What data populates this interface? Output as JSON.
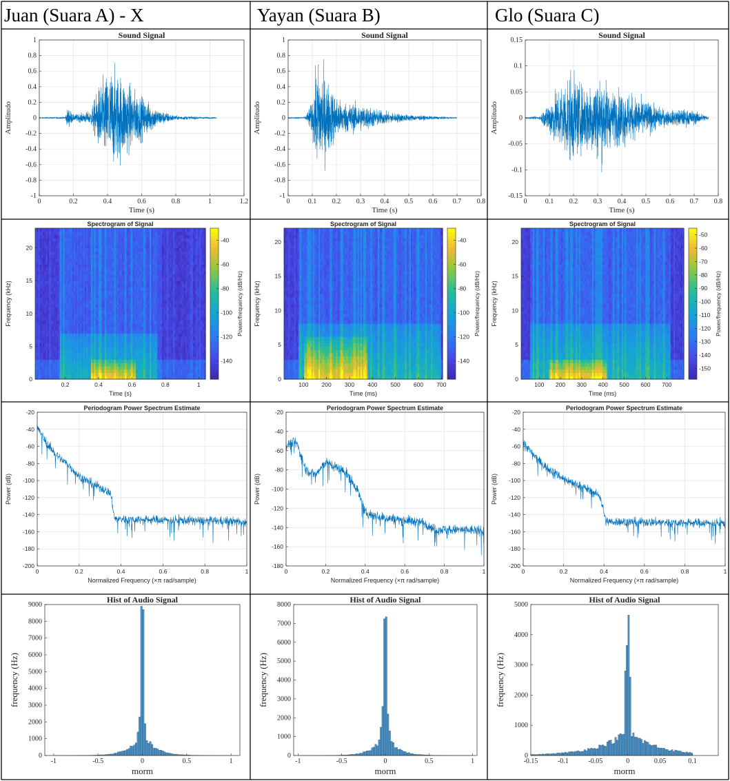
{
  "headers": [
    "Juan (Suara A) - X",
    "Yayan (Suara B)",
    "Glo (Suara C)"
  ],
  "chart_data": [
    {
      "type": "line",
      "panel": "signal",
      "column": 0,
      "title": "Sound Signal",
      "xlabel": "Time (s)",
      "ylabel": "Amplitudo",
      "xlim": [
        0,
        1.2
      ],
      "ylim": [
        -1,
        1
      ],
      "xticks": [
        "0",
        "0.2",
        "0.4",
        "0.6",
        "0.8",
        "1",
        "1.2"
      ],
      "yticks": [
        "1",
        "0.8",
        "0.6",
        "0.4",
        "0.2",
        "0",
        "-0.2",
        "-0.4",
        "-0.6",
        "-0.8",
        "-1"
      ],
      "color": "#0072BD",
      "grid": true,
      "envelope": [
        {
          "t": 0,
          "a": 0.01
        },
        {
          "t": 0.15,
          "a": 0.02
        },
        {
          "t": 0.17,
          "a": 0.2
        },
        {
          "t": 0.2,
          "a": 0.06
        },
        {
          "t": 0.3,
          "a": 0.12
        },
        {
          "t": 0.35,
          "a": 0.6
        },
        {
          "t": 0.42,
          "a": 0.92
        },
        {
          "t": 0.48,
          "a": 0.82
        },
        {
          "t": 0.55,
          "a": 0.55
        },
        {
          "t": 0.62,
          "a": 0.35
        },
        {
          "t": 0.7,
          "a": 0.15
        },
        {
          "t": 0.8,
          "a": 0.04
        },
        {
          "t": 1.04,
          "a": 0.01
        }
      ]
    },
    {
      "type": "line",
      "panel": "signal",
      "column": 1,
      "title": "Sound Signal",
      "xlabel": "Time (s)",
      "ylabel": "Amplitudo",
      "xlim": [
        0,
        0.8
      ],
      "ylim": [
        -1,
        1
      ],
      "xticks": [
        "0",
        "0.1",
        "0.2",
        "0.3",
        "0.4",
        "0.5",
        "0.6",
        "0.7",
        "0.8"
      ],
      "yticks": [
        "1",
        "0.8",
        "0.6",
        "0.4",
        "0.2",
        "0",
        "-0.2",
        "-0.4",
        "-0.6",
        "-0.8",
        "-1"
      ],
      "color": "#0072BD",
      "grid": true,
      "envelope": [
        {
          "t": 0,
          "a": 0.01
        },
        {
          "t": 0.07,
          "a": 0.02
        },
        {
          "t": 0.1,
          "a": 0.3
        },
        {
          "t": 0.12,
          "a": 1.0
        },
        {
          "t": 0.14,
          "a": 0.9
        },
        {
          "t": 0.18,
          "a": 0.55
        },
        {
          "t": 0.22,
          "a": 0.3
        },
        {
          "t": 0.3,
          "a": 0.25
        },
        {
          "t": 0.4,
          "a": 0.12
        },
        {
          "t": 0.5,
          "a": 0.06
        },
        {
          "t": 0.6,
          "a": 0.03
        },
        {
          "t": 0.7,
          "a": 0.01
        }
      ]
    },
    {
      "type": "line",
      "panel": "signal",
      "column": 2,
      "title": "Sound Signal",
      "xlabel": "Time (s)",
      "ylabel": "Amplitudo",
      "xlim": [
        0,
        0.8
      ],
      "ylim": [
        -0.15,
        0.15
      ],
      "xticks": [
        "0",
        "0.1",
        "0.2",
        "0.3",
        "0.4",
        "0.5",
        "0.6",
        "0.7",
        "0.8"
      ],
      "yticks": [
        "0.15",
        "0.1",
        "0.05",
        "0",
        "-0.05",
        "-0.1",
        "-0.15"
      ],
      "color": "#0072BD",
      "grid": true,
      "envelope": [
        {
          "t": 0,
          "a": 0.002
        },
        {
          "t": 0.06,
          "a": 0.005
        },
        {
          "t": 0.1,
          "a": 0.05
        },
        {
          "t": 0.15,
          "a": 0.1
        },
        {
          "t": 0.19,
          "a": 0.13
        },
        {
          "t": 0.23,
          "a": 0.09
        },
        {
          "t": 0.28,
          "a": 0.11
        },
        {
          "t": 0.32,
          "a": 0.12
        },
        {
          "t": 0.36,
          "a": 0.07
        },
        {
          "t": 0.4,
          "a": 0.08
        },
        {
          "t": 0.45,
          "a": 0.06
        },
        {
          "t": 0.5,
          "a": 0.05
        },
        {
          "t": 0.55,
          "a": 0.03
        },
        {
          "t": 0.6,
          "a": 0.02
        },
        {
          "t": 0.65,
          "a": 0.025
        },
        {
          "t": 0.7,
          "a": 0.02
        },
        {
          "t": 0.76,
          "a": 0.005
        }
      ]
    },
    {
      "type": "heatmap",
      "panel": "spectrogram",
      "column": 0,
      "title": "Spectrogram of Signal",
      "xlabel": "Time (s)",
      "ylabel": "Frequency (kHz)",
      "colorbar_label": "Power/frequency (dB/Hz)",
      "xlim": [
        0.02,
        1.04
      ],
      "ylim": [
        0,
        23
      ],
      "xticks": [
        "0.2",
        "0.4",
        "0.6",
        "0.8",
        "1"
      ],
      "yticks": [
        "0",
        "5",
        "10",
        "15",
        "20"
      ],
      "cticks": [
        "-40",
        "-60",
        "-80",
        "-100",
        "-120",
        "-140"
      ],
      "clim": [
        -155,
        -30
      ],
      "speech": [
        0.17,
        0.75
      ],
      "peak": [
        0.35,
        0.62
      ],
      "energy_khz": 7,
      "bright_khz": 3
    },
    {
      "type": "heatmap",
      "panel": "spectrogram",
      "column": 1,
      "title": "Spectrogram of Signal",
      "xlabel": "Time (ms)",
      "ylabel": "Frequency (kHz)",
      "colorbar_label": "Power/frequency (dB/Hz)",
      "xlim": [
        15,
        705
      ],
      "ylim": [
        0,
        22
      ],
      "xticks": [
        "100",
        "200",
        "300",
        "400",
        "500",
        "600",
        "700"
      ],
      "yticks": [
        "0",
        "5",
        "10",
        "15",
        "20"
      ],
      "cticks": [
        "-40",
        "-60",
        "-80",
        "-100",
        "-120",
        "-140"
      ],
      "clim": [
        -155,
        -30
      ],
      "speech": [
        80,
        700
      ],
      "peak": [
        100,
        380
      ],
      "energy_khz": 8,
      "bright_khz": 6
    },
    {
      "type": "heatmap",
      "panel": "spectrogram",
      "column": 2,
      "title": "Spectrogram of Signal",
      "xlabel": "Time (ms)",
      "ylabel": "Frequency (kHz)",
      "colorbar_label": "Power/frequency (dB/Hz)",
      "xlim": [
        15,
        780
      ],
      "ylim": [
        0,
        22
      ],
      "xticks": [
        "100",
        "200",
        "300",
        "400",
        "500",
        "600",
        "700"
      ],
      "yticks": [
        "0",
        "5",
        "10",
        "15",
        "20"
      ],
      "cticks": [
        "-50",
        "-60",
        "-70",
        "-80",
        "-90",
        "-100",
        "-110",
        "-120",
        "-130",
        "-140",
        "-150"
      ],
      "clim": [
        -158,
        -45
      ],
      "speech": [
        60,
        720
      ],
      "peak": [
        150,
        420
      ],
      "energy_khz": 8,
      "bright_khz": 3
    },
    {
      "type": "line",
      "panel": "periodogram",
      "column": 0,
      "title": "Periodogram Power Spectrum Estimate",
      "xlabel": "Normalized Frequency  (×π rad/sample)",
      "ylabel": "Power (dB)",
      "xlim": [
        0,
        1
      ],
      "ylim": [
        -200,
        -20
      ],
      "xticks": [
        "0",
        "0.2",
        "0.4",
        "0.6",
        "0.8",
        "1"
      ],
      "yticks": [
        "-20",
        "-40",
        "-60",
        "-80",
        "-100",
        "-120",
        "-140",
        "-160",
        "-180",
        "-200"
      ],
      "color": "#0072BD",
      "grid": true,
      "profile": [
        {
          "f": 0,
          "p": -38
        },
        {
          "f": 0.05,
          "p": -58
        },
        {
          "f": 0.1,
          "p": -72
        },
        {
          "f": 0.15,
          "p": -82
        },
        {
          "f": 0.2,
          "p": -95
        },
        {
          "f": 0.25,
          "p": -102
        },
        {
          "f": 0.3,
          "p": -108
        },
        {
          "f": 0.35,
          "p": -115
        },
        {
          "f": 0.37,
          "p": -145
        },
        {
          "f": 1,
          "p": -148
        }
      ]
    },
    {
      "type": "line",
      "panel": "periodogram",
      "column": 1,
      "title": "Periodogram Power Spectrum Estimate",
      "xlabel": "Normalized Frequency  (×π rad/sample)",
      "ylabel": "Power (dB)",
      "xlim": [
        0,
        1
      ],
      "ylim": [
        -180,
        -20
      ],
      "xticks": [
        "0",
        "0.2",
        "0.4",
        "0.6",
        "0.8",
        "1"
      ],
      "yticks": [
        "-20",
        "-40",
        "-60",
        "-80",
        "-100",
        "-120",
        "-140",
        "-160",
        "-180"
      ],
      "color": "#0072BD",
      "grid": true,
      "profile": [
        {
          "f": 0,
          "p": -55
        },
        {
          "f": 0.05,
          "p": -50
        },
        {
          "f": 0.1,
          "p": -80
        },
        {
          "f": 0.15,
          "p": -85
        },
        {
          "f": 0.2,
          "p": -72
        },
        {
          "f": 0.3,
          "p": -82
        },
        {
          "f": 0.36,
          "p": -100
        },
        {
          "f": 0.4,
          "p": -125
        },
        {
          "f": 0.5,
          "p": -130
        },
        {
          "f": 0.7,
          "p": -135
        },
        {
          "f": 0.75,
          "p": -142
        },
        {
          "f": 1,
          "p": -143
        }
      ]
    },
    {
      "type": "line",
      "panel": "periodogram",
      "column": 2,
      "title": "Periodogram Power Spectrum Estimate",
      "xlabel": "Normalized Frequency  (×π rad/sample)",
      "ylabel": "Power (dB)",
      "xlim": [
        0,
        1
      ],
      "ylim": [
        -200,
        -20
      ],
      "xticks": [
        "0",
        "0.2",
        "0.4",
        "0.6",
        "0.8",
        "1"
      ],
      "yticks": [
        "-20",
        "-40",
        "-60",
        "-80",
        "-100",
        "-120",
        "-140",
        "-160",
        "-180",
        "-200"
      ],
      "color": "#0072BD",
      "grid": true,
      "profile": [
        {
          "f": 0,
          "p": -55
        },
        {
          "f": 0.05,
          "p": -70
        },
        {
          "f": 0.1,
          "p": -82
        },
        {
          "f": 0.2,
          "p": -98
        },
        {
          "f": 0.3,
          "p": -108
        },
        {
          "f": 0.38,
          "p": -118
        },
        {
          "f": 0.41,
          "p": -148
        },
        {
          "f": 1,
          "p": -150
        }
      ]
    },
    {
      "type": "bar",
      "panel": "histogram",
      "column": 0,
      "title": "Hist of Audio Signal",
      "xlabel": "morm",
      "ylabel": "frequency (Hz)",
      "xlim": [
        -1.1,
        1.1
      ],
      "ylim": [
        0,
        9000
      ],
      "xticks": [
        "-1",
        "-0.5",
        "0",
        "0.5",
        "1"
      ],
      "yticks": [
        "9000",
        "8000",
        "7000",
        "6000",
        "5000",
        "4000",
        "3000",
        "2000",
        "1000",
        "0"
      ],
      "color": "#4d93c6",
      "bin_width": 0.02,
      "peaks": [
        {
          "x": -0.01,
          "v": 8900
        },
        {
          "x": 0.01,
          "v": 8700
        },
        {
          "x": -0.03,
          "v": 2300
        },
        {
          "x": 0.03,
          "v": 1900
        },
        {
          "x": -0.05,
          "v": 1400
        },
        {
          "x": 0.05,
          "v": 900
        }
      ],
      "tail_scale": 0.13
    },
    {
      "type": "bar",
      "panel": "histogram",
      "column": 1,
      "title": "Hist of Audio Signal",
      "xlabel": "morm",
      "ylabel": "frequency (Hz)",
      "xlim": [
        -1.05,
        1.05
      ],
      "ylim": [
        0,
        8000
      ],
      "xticks": [
        "-1",
        "-0.5",
        "0",
        "0.5",
        "1"
      ],
      "yticks": [
        "8000",
        "7000",
        "6000",
        "5000",
        "4000",
        "3000",
        "2000",
        "1000",
        "0"
      ],
      "color": "#4d93c6",
      "bin_width": 0.02,
      "peaks": [
        {
          "x": -0.01,
          "v": 7250
        },
        {
          "x": 0.01,
          "v": 7350
        },
        {
          "x": -0.03,
          "v": 2600
        },
        {
          "x": 0.03,
          "v": 2200
        },
        {
          "x": -0.05,
          "v": 1500
        },
        {
          "x": 0.05,
          "v": 1300
        }
      ],
      "tail_scale": 0.12
    },
    {
      "type": "bar",
      "panel": "histogram",
      "column": 2,
      "title": "Hist of Audio Signal",
      "xlabel": "morm",
      "ylabel": "frequency (Hz)",
      "xlim": [
        -0.15,
        0.14
      ],
      "ylim": [
        0,
        5000
      ],
      "xticks": [
        "-0.15",
        "-0.1",
        "-0.05",
        "0",
        "0.05",
        "0.1"
      ],
      "yticks": [
        "5000",
        "4000",
        "3000",
        "2000",
        "1000",
        "0"
      ],
      "color": "#4d93c6",
      "bin_width": 0.0025,
      "peaks": [
        {
          "x": 0.00125,
          "v": 4650
        },
        {
          "x": -0.00125,
          "v": 3650
        },
        {
          "x": 0.00375,
          "v": 2600
        },
        {
          "x": -0.00375,
          "v": 2800
        },
        {
          "x": -0.0075,
          "v": 1900
        },
        {
          "x": 0.0075,
          "v": 1300
        }
      ],
      "tail_scale": 0.045
    }
  ]
}
